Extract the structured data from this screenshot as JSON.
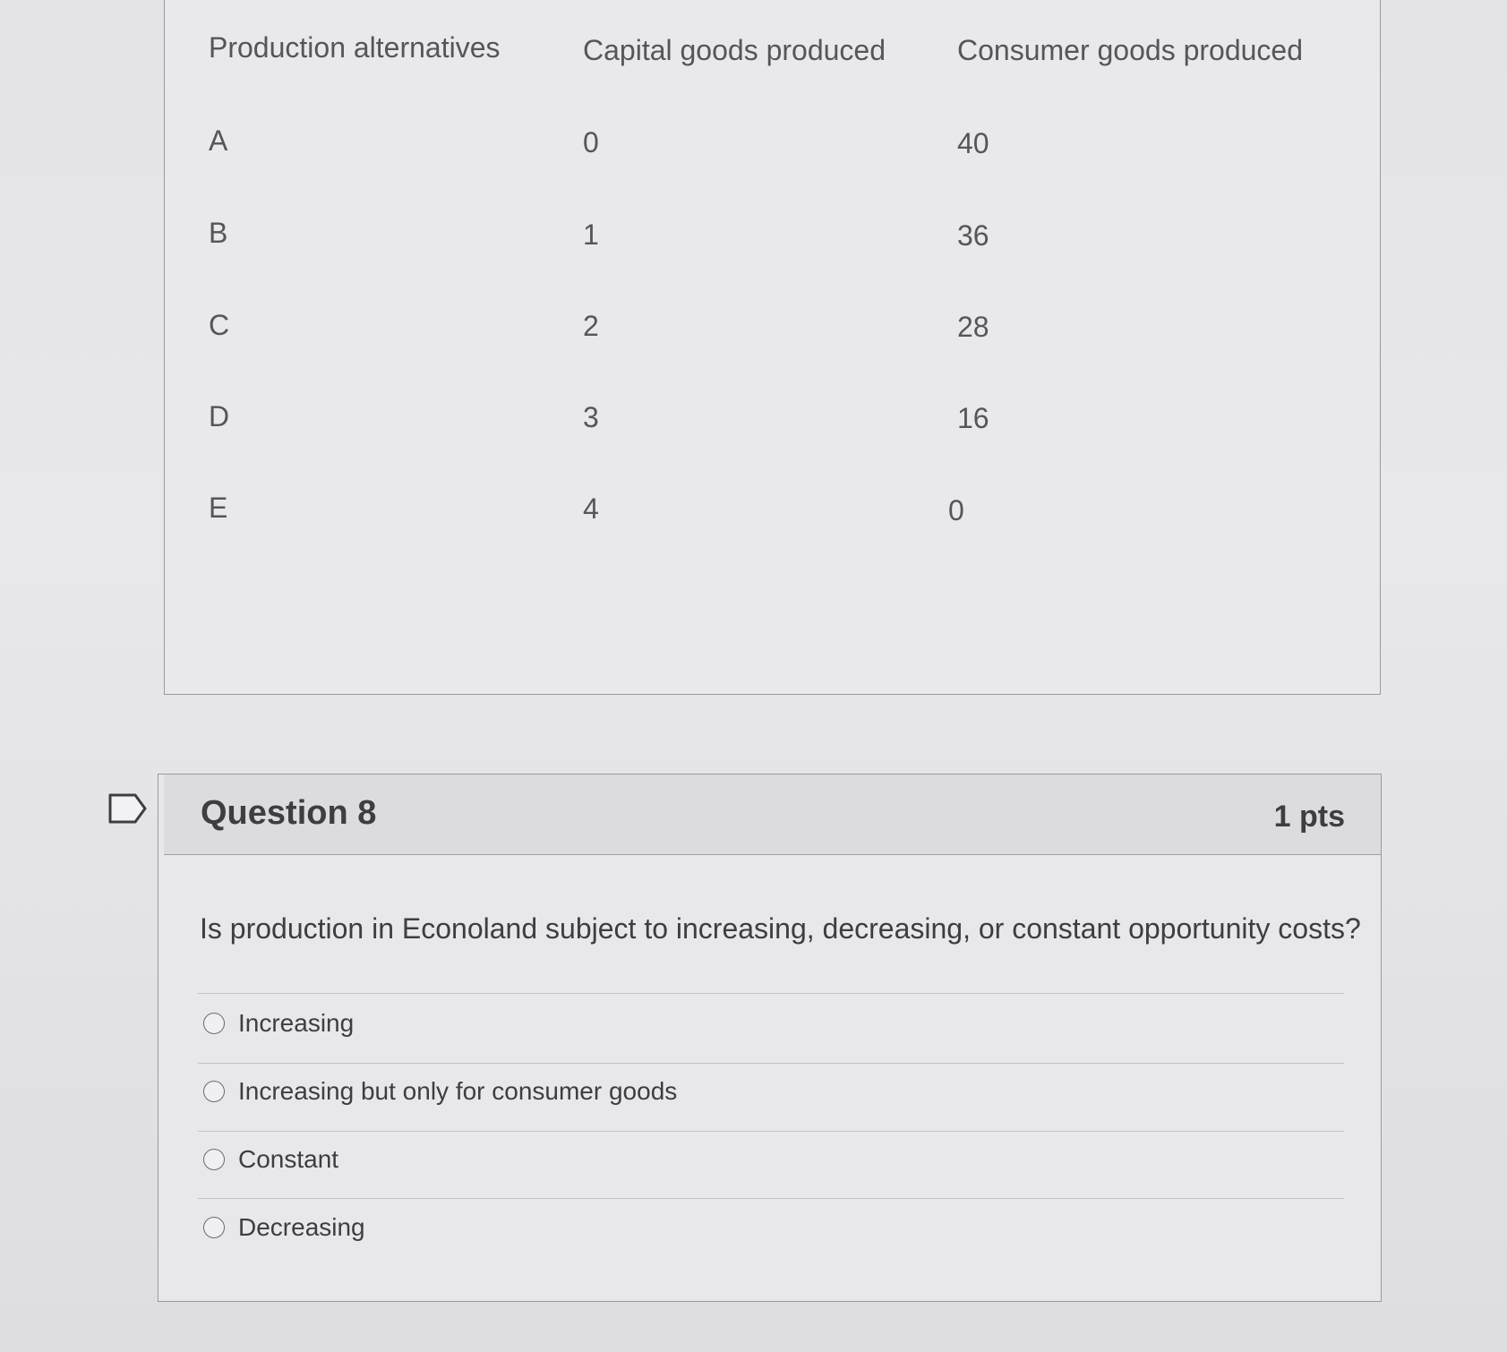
{
  "table": {
    "headers": [
      "Production alternatives",
      "Capital goods produced",
      "Consumer goods produced"
    ],
    "rows": [
      [
        "A",
        "0",
        "40"
      ],
      [
        "B",
        "1",
        "36"
      ],
      [
        "C",
        "2",
        "28"
      ],
      [
        "D",
        "3",
        "16"
      ],
      [
        "E",
        "4",
        "0"
      ]
    ]
  },
  "question": {
    "title": "Question 8",
    "points": "1 pts",
    "text": "Is production in Econoland subject to increasing, decreasing, or constant opportunity costs?",
    "options": [
      "Increasing",
      "Increasing but only for consumer goods",
      "Constant",
      "Decreasing"
    ],
    "flag_icon": "bookmark-flag-icon"
  }
}
